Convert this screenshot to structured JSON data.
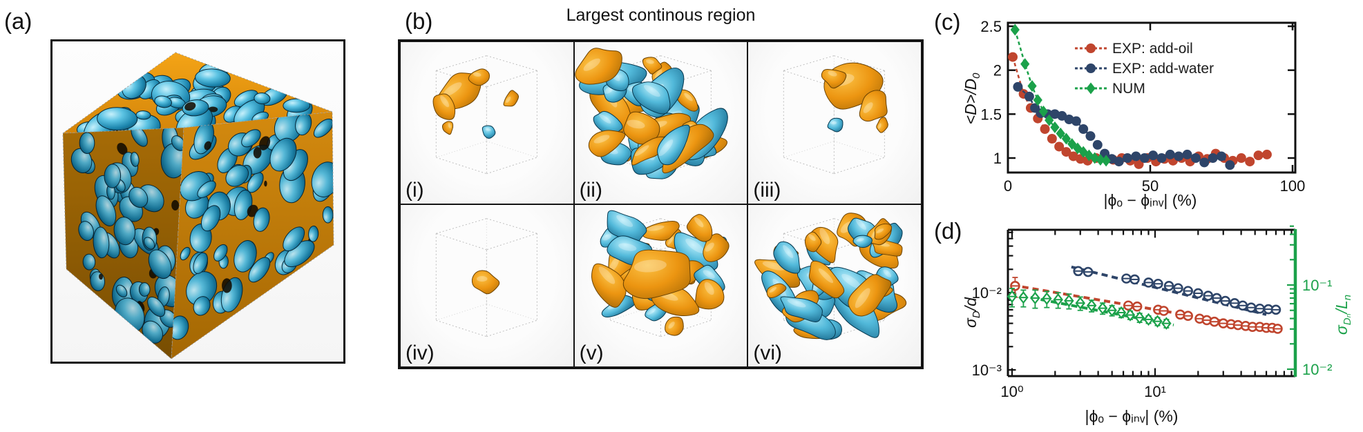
{
  "panels": {
    "a": {
      "label": "(a)"
    },
    "b": {
      "label": "(b)",
      "title": "Largest continous region",
      "subpanels": [
        {
          "label": "(i)",
          "render": {
            "mode": "items",
            "seed": 3,
            "items": [
              [
                "o",
                88,
                70,
                24,
                1.6,
                -35
              ],
              [
                "o",
                64,
                95,
                16,
                1.5,
                55
              ],
              [
                "o",
                115,
                52,
                12,
                1.2,
                10
              ],
              [
                "o",
                162,
                84,
                10,
                1.3,
                -55
              ],
              [
                "o",
                70,
                126,
                8,
                1.2,
                75
              ],
              [
                "b",
                130,
                132,
                9,
                1.15,
                15
              ]
            ]
          }
        },
        {
          "label": "(ii)",
          "render": {
            "mode": "dense",
            "seed": 11,
            "count": 34,
            "orange": 0.5
          }
        },
        {
          "label": "(iii)",
          "render": {
            "mode": "items",
            "seed": 5,
            "items": [
              [
                "o",
                150,
                64,
                36,
                1.3,
                -12
              ],
              [
                "o",
                184,
                96,
                19,
                1.2,
                -50
              ],
              [
                "o",
                126,
                52,
                15,
                1.1,
                20
              ],
              [
                "b",
                128,
                122,
                10,
                1.1,
                0
              ],
              [
                "o",
                196,
                122,
                8,
                1.3,
                -70
              ]
            ]
          }
        },
        {
          "label": "(iv)",
          "render": {
            "mode": "items",
            "seed": 7,
            "items": [
              [
                "o",
                124,
                114,
                17,
                1.1,
                0
              ]
            ]
          }
        },
        {
          "label": "(v)",
          "render": {
            "mode": "dense",
            "seed": 23,
            "count": 30,
            "orange": 0.66,
            "items": [
              [
                "o",
                126,
                100,
                38,
                1.5,
                -5
              ]
            ]
          }
        },
        {
          "label": "(vi)",
          "render": {
            "mode": "dense",
            "seed": 31,
            "count": 34,
            "orange": 0.45
          }
        }
      ]
    },
    "c": {
      "label": "(c)"
    },
    "d": {
      "label": "(d)"
    }
  },
  "chart_data": [
    {
      "id": "c",
      "type": "scatter",
      "xscale": "linear",
      "yscale": "linear",
      "xlabel": "|ϕₒ − ϕᵢₙᵥ| (%)",
      "ylabel": {
        "main": "<D>/D",
        "sub": "0"
      },
      "xlim": [
        0,
        101
      ],
      "ylim": [
        0.83,
        2.5
      ],
      "xticks": [
        0,
        50,
        100
      ],
      "yticks": [
        1,
        1.5,
        2,
        2.5
      ],
      "grid": false,
      "legend_position": "top-right",
      "series": [
        {
          "name": "EXP: add-oil",
          "color": "#c0452e",
          "marker": "circle",
          "line": "dashed",
          "x": [
            1.7,
            5.5,
            8,
            10.5,
            13,
            15.5,
            18,
            20.5,
            23,
            25.5,
            28,
            31,
            34,
            37,
            40,
            43,
            46,
            49,
            52,
            55,
            58,
            61,
            64,
            67,
            70,
            73,
            76,
            79,
            82,
            85,
            88,
            91
          ],
          "y": [
            2.15,
            1.73,
            1.57,
            1.45,
            1.33,
            1.22,
            1.13,
            1.07,
            1.02,
            0.99,
            0.97,
            1.0,
            1.02,
            0.98,
            1.0,
            0.97,
            0.93,
            1.0,
            0.96,
            0.99,
            0.97,
            1.0,
            0.96,
            1.02,
            0.99,
            1.05,
            1.0,
            0.97,
            1.0,
            0.96,
            1.03,
            1.04
          ]
        },
        {
          "name": "EXP: add-water",
          "color": "#2e4569",
          "marker": "circle",
          "line": "dashed",
          "x": [
            3.5,
            7.5,
            9.5,
            11.5,
            14,
            16.5,
            19,
            21.5,
            24,
            26.5,
            29,
            31.5,
            34,
            36.5,
            39,
            42,
            45,
            48,
            51,
            54,
            57,
            60,
            63,
            66,
            69,
            72,
            75,
            78
          ],
          "y": [
            1.81,
            1.7,
            1.57,
            1.51,
            1.5,
            1.5,
            1.48,
            1.44,
            1.42,
            1.33,
            1.25,
            1.15,
            1.05,
            0.99,
            0.96,
            1.0,
            1.02,
            1.0,
            1.03,
            1.0,
            1.04,
            1.02,
            1.04,
            1.0,
            0.95,
            1.0,
            1.02,
            0.92
          ]
        },
        {
          "name": "NUM",
          "color": "#1ba14a",
          "marker": "diamond",
          "line": "dashed",
          "x": [
            2.5,
            6,
            8.5,
            10.5,
            12.5,
            14.5,
            16.5,
            18.5,
            20.5,
            22.5,
            24.5,
            26.5,
            28.5,
            30.5,
            32.5,
            34.5
          ],
          "y": [
            2.46,
            2.07,
            1.82,
            1.66,
            1.53,
            1.43,
            1.35,
            1.28,
            1.22,
            1.16,
            1.11,
            1.07,
            1.03,
            1.0,
            0.98,
            0.97
          ]
        }
      ]
    },
    {
      "id": "d",
      "type": "scatter",
      "xscale": "log",
      "yscale": "log",
      "xlabel": "|ϕₒ − ϕᵢₙᵥ| (%)",
      "ylabel_left": {
        "sym": "σ",
        "sub": "D",
        "rest": "/d"
      },
      "ylabel_right": {
        "sym": "σ",
        "sub": "Dₙ",
        "rest": "/L",
        "sub2": "n"
      },
      "xlim": [
        0.93,
        95
      ],
      "ylim_left": [
        0.00083,
        0.065
      ],
      "ylim_right": [
        0.0084,
        0.52
      ],
      "xticks": [
        {
          "v": 1,
          "t": "10⁰"
        },
        {
          "v": 10,
          "t": "10¹"
        }
      ],
      "yticks_left": [
        {
          "v": 0.01,
          "t": "10⁻²"
        },
        {
          "v": 0.001,
          "t": "10⁻³"
        }
      ],
      "yticks_right": [
        {
          "v": 0.1,
          "t": "10⁻¹"
        },
        {
          "v": 0.01,
          "t": "10⁻²"
        }
      ],
      "right_axis_color": "#1ba14a",
      "series": [
        {
          "name": "EXP: add-water",
          "axis": "left",
          "color": "#2e4569",
          "marker": "circle-open",
          "x": [
            2.9,
            3.4,
            6.3,
            7.2,
            9,
            10.5,
            12.5,
            14.5,
            17,
            20,
            23.5,
            27,
            31,
            36,
            41,
            47,
            54,
            62,
            70
          ],
          "y": [
            0.019,
            0.0185,
            0.0152,
            0.0148,
            0.0135,
            0.013,
            0.0122,
            0.0114,
            0.0105,
            0.0098,
            0.0091,
            0.0085,
            0.0078,
            0.0073,
            0.0068,
            0.0064,
            0.0062,
            0.0061,
            0.006
          ],
          "yerr": [
            0.0022,
            0.002,
            0.0016,
            0.0015,
            0.0014,
            0.0013,
            0.0012,
            0.0012,
            0.0011,
            0.001,
            0.0009,
            0.0009,
            0.0008,
            0.0008,
            0.0007,
            0.0007,
            0.0006,
            0.0006,
            0.0006
          ],
          "trend": {
            "x": [
              2.6,
              60
            ],
            "y": [
              0.0215,
              0.0052
            ]
          }
        },
        {
          "name": "EXP: add-oil",
          "axis": "left",
          "color": "#c0452e",
          "marker": "circle-open",
          "x": [
            1.05,
            6.5,
            7.5,
            10.5,
            11.5,
            15,
            17,
            20.5,
            23,
            26,
            30,
            34,
            38,
            43,
            48,
            54,
            60,
            66,
            72
          ],
          "y": [
            0.0122,
            0.0068,
            0.0066,
            0.006,
            0.0058,
            0.0052,
            0.005,
            0.0046,
            0.0044,
            0.0042,
            0.004,
            0.0039,
            0.0038,
            0.0037,
            0.0036,
            0.0036,
            0.0035,
            0.0035,
            0.0034
          ],
          "yerr": [
            0.0035,
            0.0006,
            0.0006,
            0.0005,
            0.0005,
            0.0005,
            0.0004,
            0.0004,
            0.0004,
            0.0004,
            0.0003,
            0.0003,
            0.0003,
            0.0003,
            0.0003,
            0.0003,
            0.0003,
            0.0003,
            0.0003
          ],
          "trend": {
            "x": [
              1.0,
              40
            ],
            "y": [
              0.0125,
              0.0039
            ]
          }
        },
        {
          "name": "NUM",
          "axis": "right",
          "color": "#1ba14a",
          "marker": "diamond-open",
          "x": [
            1.0,
            1.2,
            1.45,
            1.75,
            2.1,
            2.5,
            3.0,
            3.6,
            4.3,
            5.0,
            5.8,
            6.7,
            7.8,
            9.0,
            10.4,
            12.0
          ],
          "y": [
            0.073,
            0.071,
            0.07,
            0.069,
            0.067,
            0.065,
            0.061,
            0.057,
            0.053,
            0.05,
            0.047,
            0.044,
            0.041,
            0.039,
            0.037,
            0.035
          ],
          "yerr": [
            0.018,
            0.016,
            0.017,
            0.015,
            0.014,
            0.013,
            0.011,
            0.009,
            0.008,
            0.007,
            0.006,
            0.005,
            0.005,
            0.004,
            0.004,
            0.004
          ],
          "trend": {
            "x": [
              0.97,
              13.5
            ],
            "y": [
              0.079,
              0.0335
            ]
          }
        }
      ]
    }
  ],
  "colors": {
    "accent_red": "#c0452e",
    "accent_blue": "#2e4569",
    "accent_green": "#1ba14a",
    "render_orange": "#e8920f",
    "render_blue": "#1a7fae",
    "axis": "#111111"
  }
}
